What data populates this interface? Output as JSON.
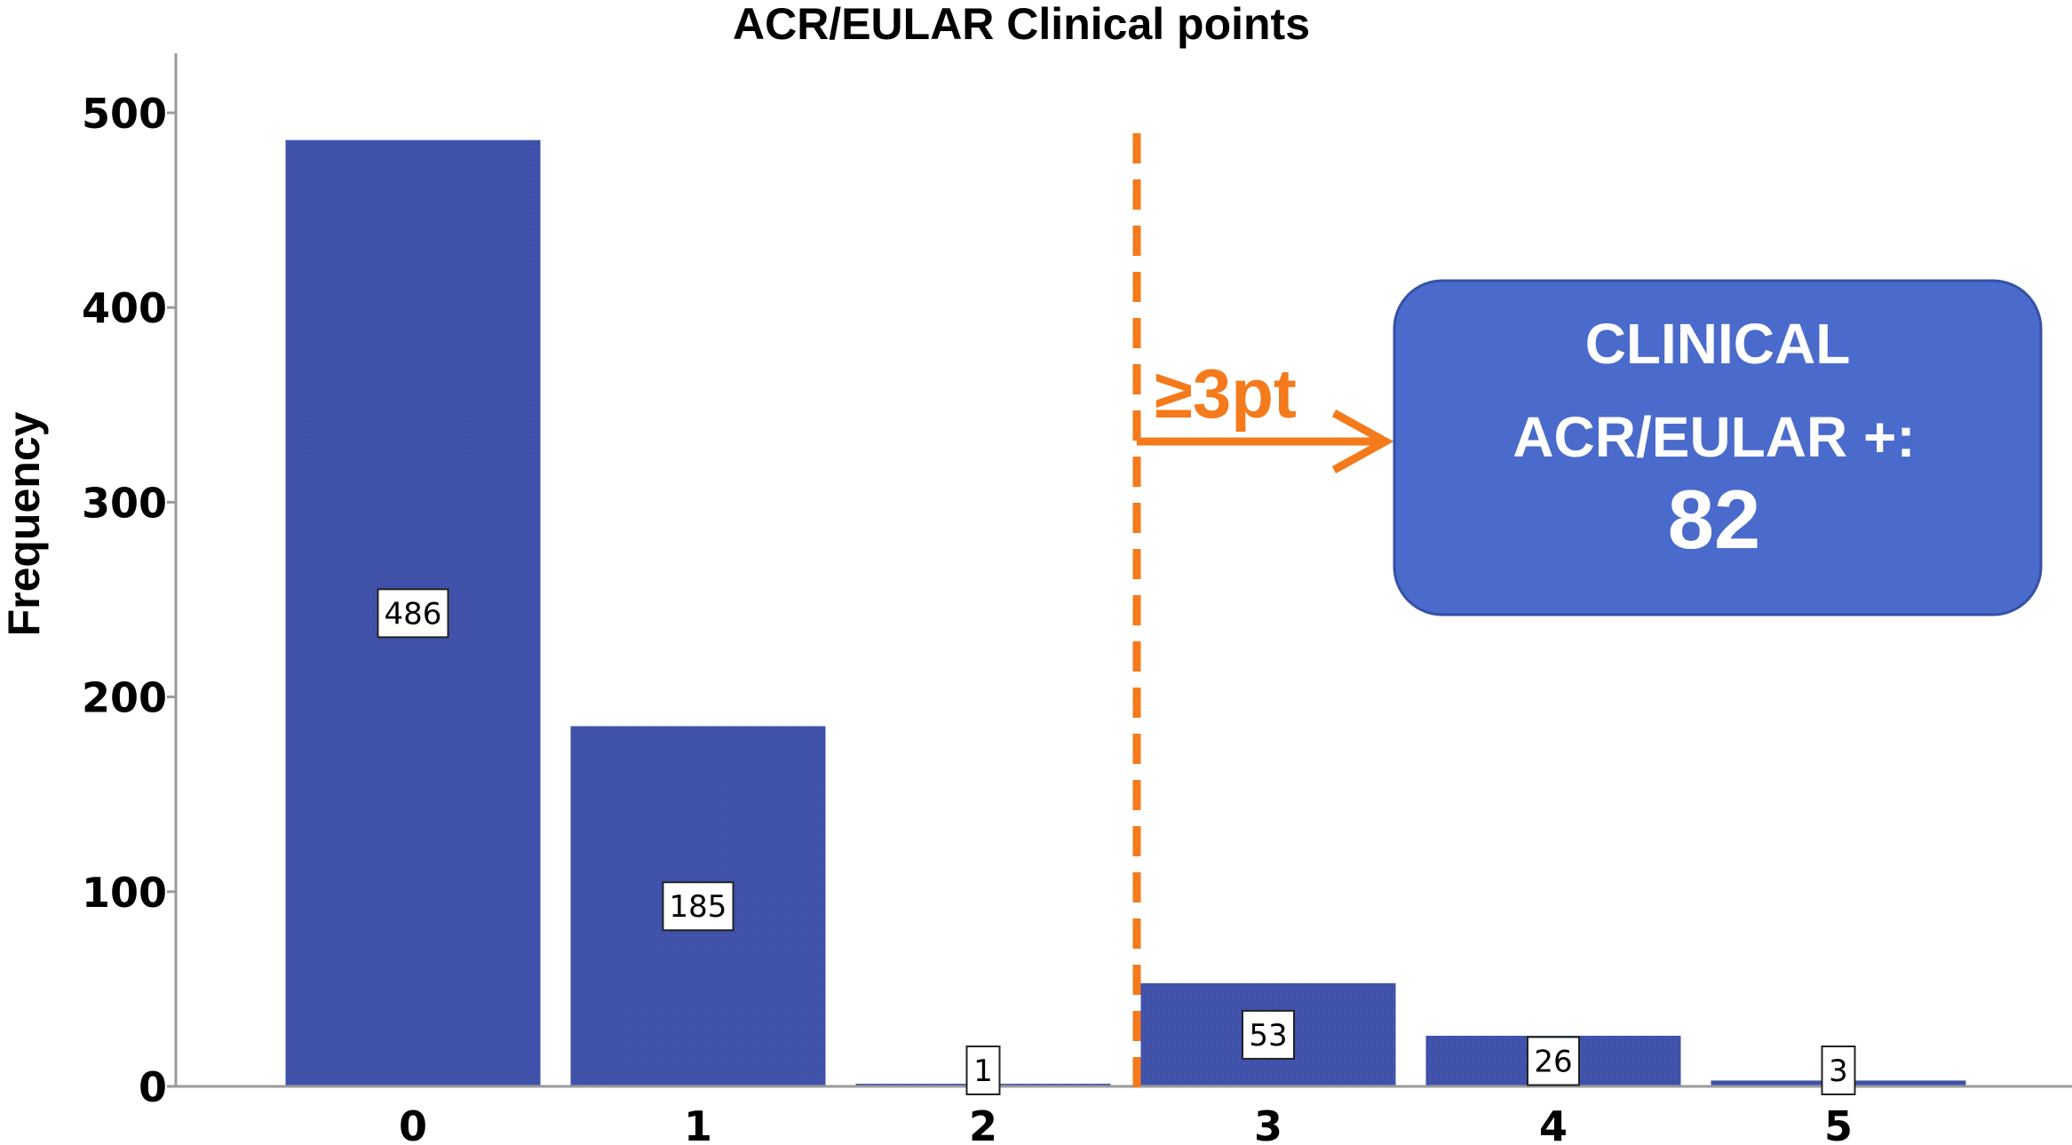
{
  "chart_data": {
    "type": "bar",
    "title": "ACR/EULAR Clinical points",
    "xlabel": "",
    "ylabel": "Frequency",
    "categories": [
      "0",
      "1",
      "2",
      "3",
      "4",
      "5"
    ],
    "values": [
      486,
      185,
      1,
      53,
      26,
      3
    ],
    "data_labels": [
      "486",
      "185",
      "1",
      "53",
      "26",
      "3"
    ],
    "ylim": [
      0,
      500
    ],
    "yticks": [
      "0",
      "100",
      "200",
      "300",
      "400",
      "500"
    ],
    "grid": false,
    "legend": "none",
    "bar_color": "#3f51a9",
    "annotation_color": "#f57a1b",
    "threshold": {
      "between_categories": [
        "2",
        "3"
      ],
      "label_symbol": "≥",
      "label_text": "3pt"
    },
    "callout": {
      "line1": "CLINICAL",
      "line2": "ACR/EULAR +:",
      "value": "82",
      "fill_color": "#4a6bcb",
      "border_color": "#3550a6"
    }
  }
}
